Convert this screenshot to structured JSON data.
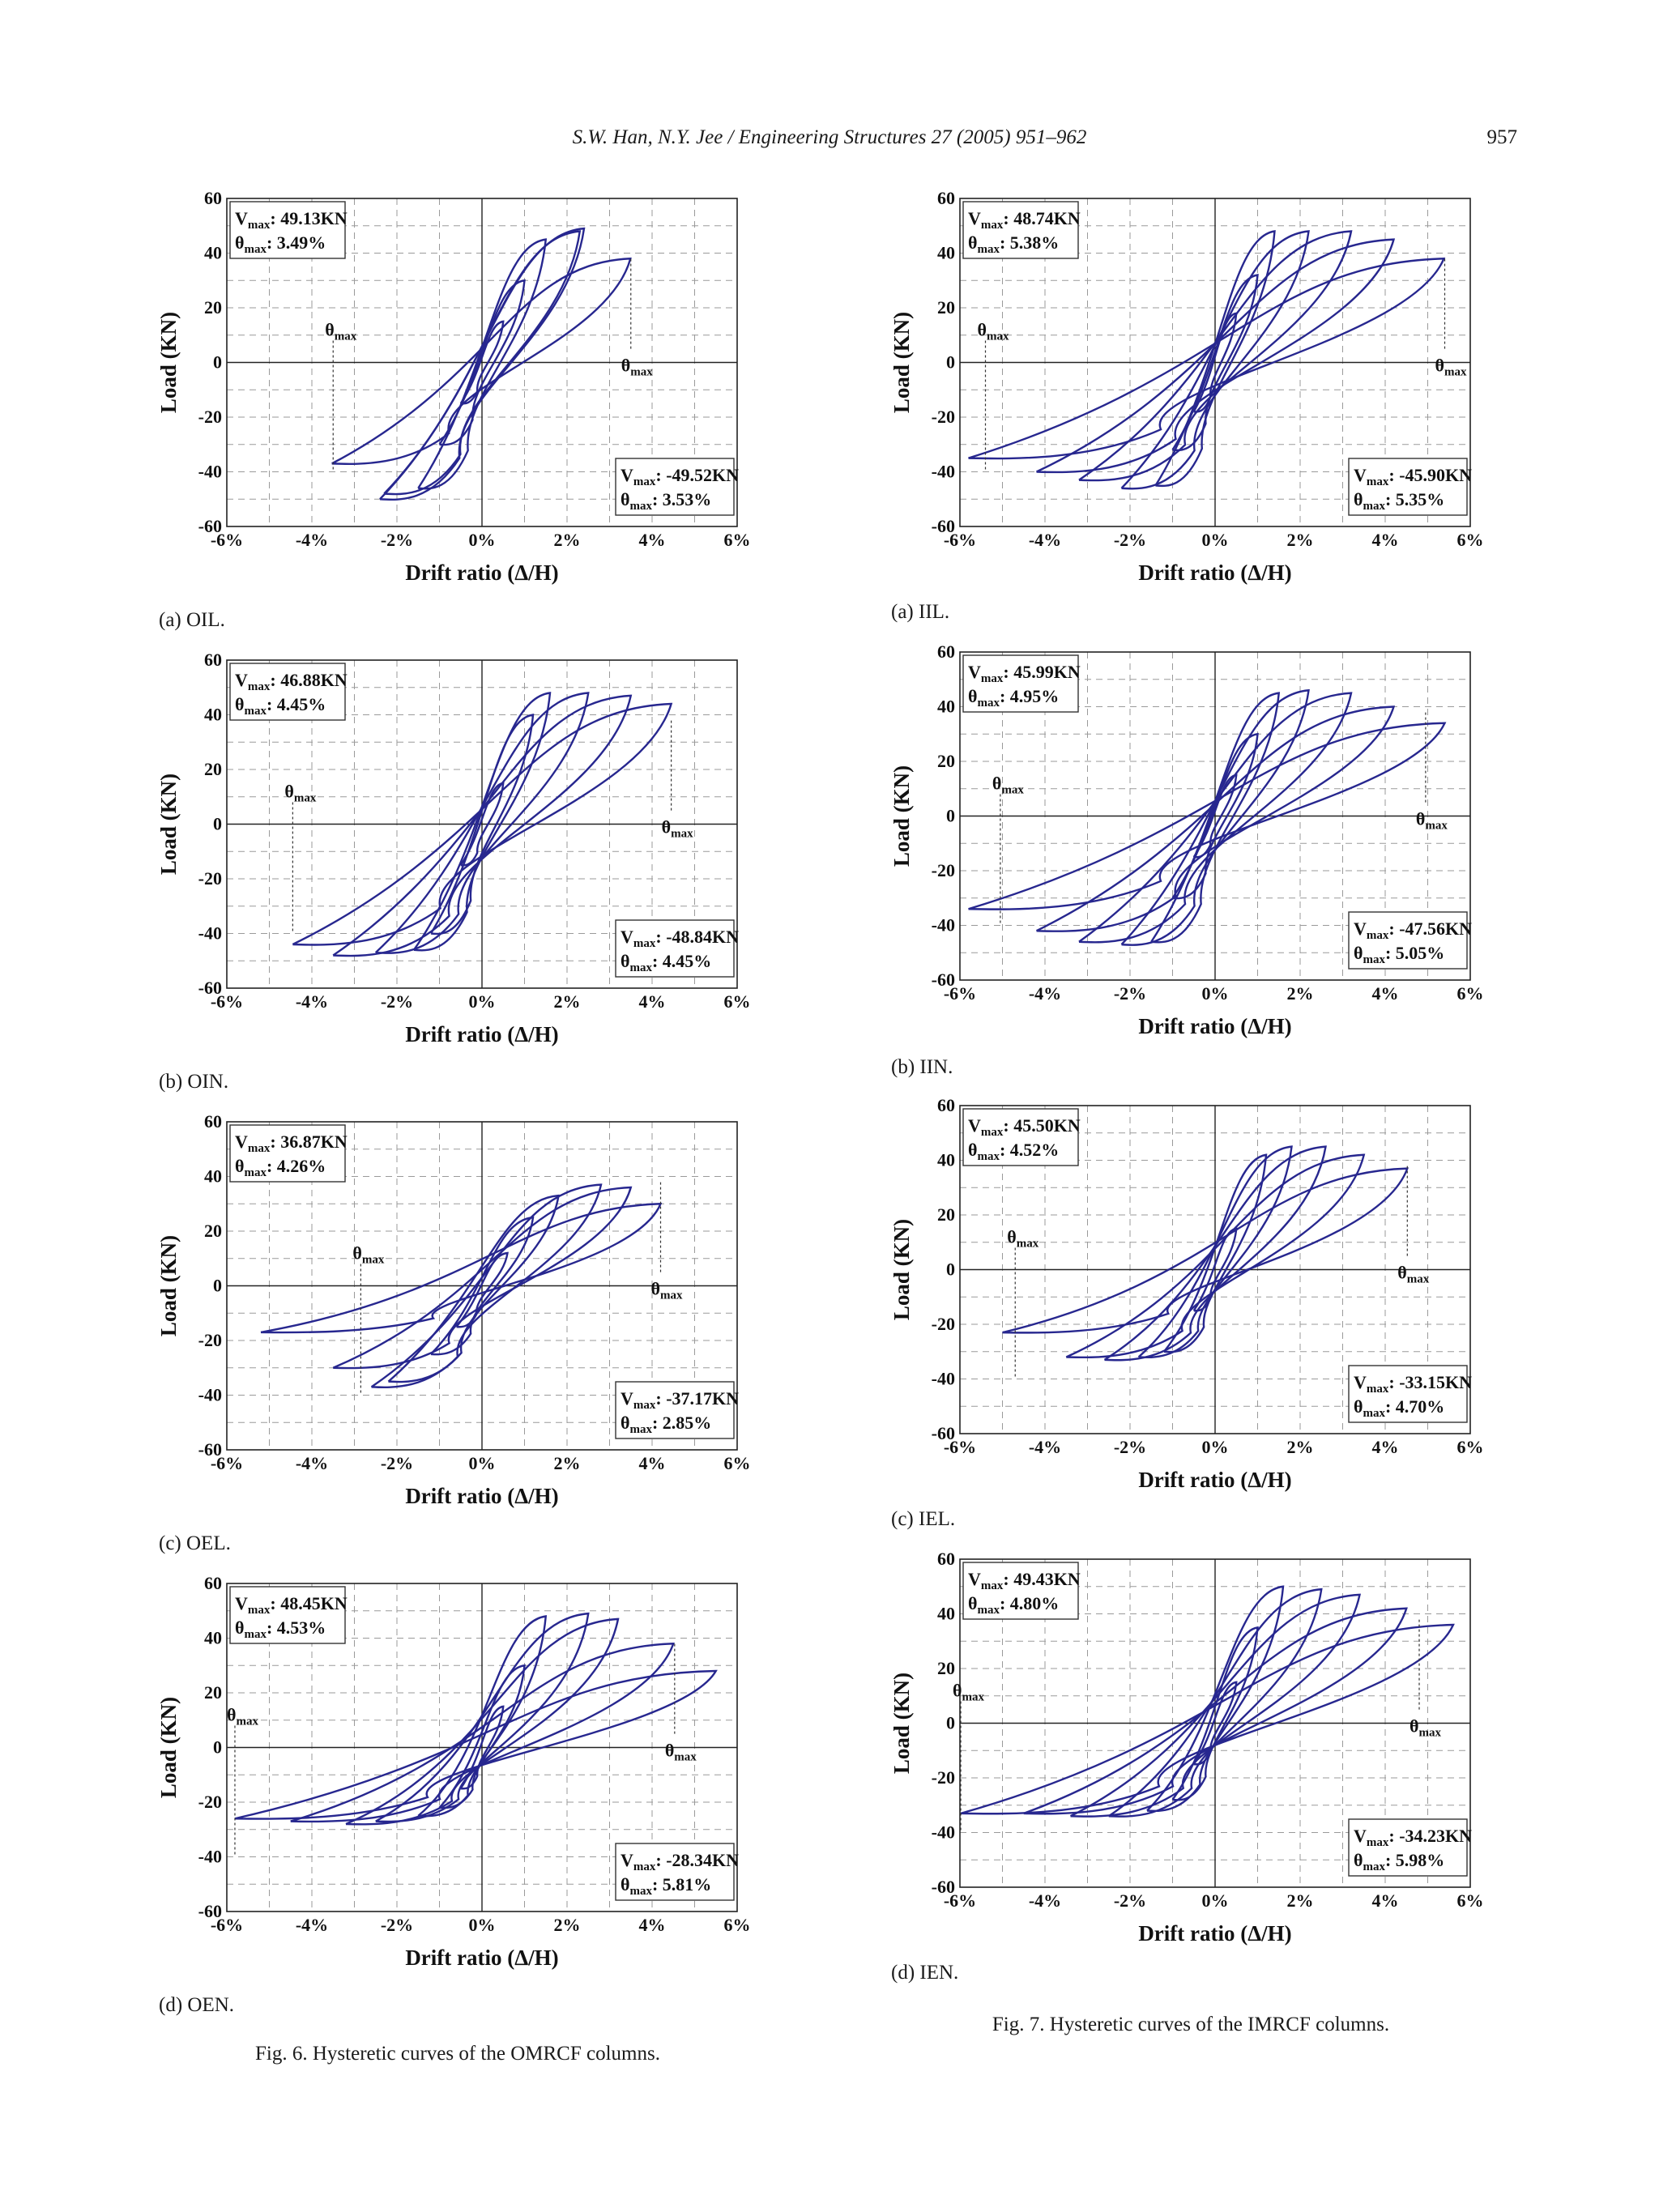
{
  "header": {
    "running_head": "S.W. Han, N.Y. Jee / Engineering Structures 27 (2005) 951–962",
    "page_number": "957"
  },
  "figures": [
    {
      "caption": "Fig. 6. Hysteretic curves of the OMRCF columns."
    },
    {
      "caption": "Fig. 7. Hysteretic curves of the IMRCF columns."
    }
  ],
  "colors": {
    "curve": "#27278f",
    "axis": "#222222",
    "grid": "#9a9a9a"
  },
  "chart_data": [
    {
      "type": "line",
      "panel": "(a) OIL.",
      "xlabel": "Drift ratio (Δ/H)",
      "ylabel": "Load (KN)",
      "xlim": [
        -6,
        6
      ],
      "ylim": [
        -60,
        60
      ],
      "x_ticks": [
        "-6%",
        "-4%",
        "-2%",
        "0%",
        "2%",
        "4%",
        "6%"
      ],
      "y_ticks": [
        "60",
        "40",
        "20",
        "0",
        "-20",
        "-40",
        "-60"
      ],
      "pos_peak": {
        "vmax": "49.13KN",
        "theta": "3.49%"
      },
      "neg_peak": {
        "vmax": "-49.52KN",
        "theta": "3.53%"
      },
      "theta_marks": [
        -3.5,
        3.5
      ],
      "theta_label": "max",
      "series": [
        {
          "amp": 0.5,
          "pos": [
            0.5,
            15
          ],
          "neg": [
            -0.5,
            -15
          ]
        },
        {
          "amp": 1.0,
          "pos": [
            1.0,
            30
          ],
          "neg": [
            -1.0,
            -30
          ]
        },
        {
          "amp": 1.5,
          "pos": [
            1.5,
            45
          ],
          "neg": [
            -1.5,
            -46
          ]
        },
        {
          "amp": 2.3,
          "pos": [
            2.3,
            48
          ],
          "neg": [
            -2.3,
            -48
          ]
        },
        {
          "amp": 2.4,
          "pos": [
            2.4,
            49
          ],
          "neg": [
            -2.4,
            -50
          ]
        },
        {
          "amp": 3.49,
          "pos": [
            3.49,
            38
          ],
          "neg": [
            -3.53,
            -37
          ]
        }
      ]
    },
    {
      "type": "line",
      "panel": "(a) IIL.",
      "xlabel": "Drift ratio (Δ/H)",
      "ylabel": "Load (KN)",
      "xlim": [
        -6,
        6
      ],
      "ylim": [
        -60,
        60
      ],
      "x_ticks": [
        "-6%",
        "-4%",
        "-2%",
        "0%",
        "2%",
        "4%",
        "6%"
      ],
      "y_ticks": [
        "60",
        "40",
        "20",
        "0",
        "-20",
        "-40",
        "-60"
      ],
      "pos_peak": {
        "vmax": "48.74KN",
        "theta": "5.38%"
      },
      "neg_peak": {
        "vmax": "-45.90KN",
        "theta": "5.35%"
      },
      "theta_marks": [
        -5.4,
        5.4
      ],
      "theta_label": "max",
      "series": [
        {
          "amp": 0.5,
          "pos": [
            0.5,
            18
          ],
          "neg": [
            -0.5,
            -18
          ]
        },
        {
          "amp": 1.0,
          "pos": [
            1.0,
            32
          ],
          "neg": [
            -1.0,
            -32
          ]
        },
        {
          "amp": 1.4,
          "pos": [
            1.4,
            48
          ],
          "neg": [
            -1.4,
            -45
          ]
        },
        {
          "amp": 2.2,
          "pos": [
            2.2,
            48
          ],
          "neg": [
            -2.2,
            -46
          ]
        },
        {
          "amp": 3.2,
          "pos": [
            3.2,
            48
          ],
          "neg": [
            -3.2,
            -43
          ]
        },
        {
          "amp": 4.2,
          "pos": [
            4.2,
            45
          ],
          "neg": [
            -4.2,
            -40
          ]
        },
        {
          "amp": 5.38,
          "pos": [
            5.38,
            38
          ],
          "neg": [
            -5.8,
            -35
          ]
        }
      ]
    },
    {
      "type": "line",
      "panel": "(b) OIN.",
      "xlabel": "Drift ratio (Δ/H)",
      "ylabel": "Load (KN)",
      "xlim": [
        -6,
        6
      ],
      "ylim": [
        -60,
        60
      ],
      "x_ticks": [
        "-6%",
        "-4%",
        "-2%",
        "0%",
        "2%",
        "4%",
        "6%"
      ],
      "y_ticks": [
        "60",
        "40",
        "20",
        "0",
        "-20",
        "-40",
        "-60"
      ],
      "pos_peak": {
        "vmax": "46.88KN",
        "theta": "4.45%"
      },
      "neg_peak": {
        "vmax": "-48.84KN",
        "theta": "4.45%"
      },
      "theta_marks": [
        -4.45,
        4.45
      ],
      "theta_label": "max",
      "series": [
        {
          "amp": 0.5,
          "pos": [
            0.5,
            15
          ],
          "neg": [
            -0.5,
            -15
          ]
        },
        {
          "amp": 1.2,
          "pos": [
            1.2,
            40
          ],
          "neg": [
            -1.2,
            -40
          ]
        },
        {
          "amp": 1.6,
          "pos": [
            1.6,
            48
          ],
          "neg": [
            -1.6,
            -46
          ]
        },
        {
          "amp": 2.5,
          "pos": [
            2.5,
            48
          ],
          "neg": [
            -2.5,
            -47
          ]
        },
        {
          "amp": 3.5,
          "pos": [
            3.5,
            47
          ],
          "neg": [
            -3.5,
            -48
          ]
        },
        {
          "amp": 4.45,
          "pos": [
            4.45,
            44
          ],
          "neg": [
            -4.45,
            -44
          ]
        }
      ]
    },
    {
      "type": "line",
      "panel": "(b) IIN.",
      "xlabel": "Drift ratio (Δ/H)",
      "ylabel": "Load (KN)",
      "xlim": [
        -6,
        6
      ],
      "ylim": [
        -60,
        60
      ],
      "x_ticks": [
        "-6%",
        "-4%",
        "-2%",
        "0%",
        "2%",
        "4%",
        "6%"
      ],
      "y_ticks": [
        "60",
        "40",
        "20",
        "0",
        "-20",
        "-40",
        "-60"
      ],
      "pos_peak": {
        "vmax": "45.99KN",
        "theta": "4.95%"
      },
      "neg_peak": {
        "vmax": "-47.56KN",
        "theta": "5.05%"
      },
      "theta_marks": [
        -5.05,
        4.95
      ],
      "theta_label": "max",
      "series": [
        {
          "amp": 0.5,
          "pos": [
            0.5,
            15
          ],
          "neg": [
            -0.5,
            -15
          ]
        },
        {
          "amp": 1.0,
          "pos": [
            1.0,
            30
          ],
          "neg": [
            -1.0,
            -30
          ]
        },
        {
          "amp": 1.5,
          "pos": [
            1.5,
            45
          ],
          "neg": [
            -1.5,
            -46
          ]
        },
        {
          "amp": 2.2,
          "pos": [
            2.2,
            46
          ],
          "neg": [
            -2.2,
            -47
          ]
        },
        {
          "amp": 3.2,
          "pos": [
            3.2,
            45
          ],
          "neg": [
            -3.2,
            -46
          ]
        },
        {
          "amp": 4.2,
          "pos": [
            4.2,
            40
          ],
          "neg": [
            -4.2,
            -42
          ]
        },
        {
          "amp": 5.4,
          "pos": [
            5.4,
            34
          ],
          "neg": [
            -5.8,
            -34
          ]
        }
      ]
    },
    {
      "type": "line",
      "panel": "(c) OEL.",
      "xlabel": "Drift ratio (Δ/H)",
      "ylabel": "Load (KN)",
      "xlim": [
        -6,
        6
      ],
      "ylim": [
        -60,
        60
      ],
      "x_ticks": [
        "-6%",
        "-4%",
        "-2%",
        "0%",
        "2%",
        "4%",
        "6%"
      ],
      "y_ticks": [
        "60",
        "40",
        "20",
        "0",
        "-20",
        "-40",
        "-60"
      ],
      "pos_peak": {
        "vmax": "36.87KN",
        "theta": "4.26%"
      },
      "neg_peak": {
        "vmax": "-37.17KN",
        "theta": "2.85%"
      },
      "theta_marks": [
        -2.85,
        4.2
      ],
      "theta_label": "max",
      "series": [
        {
          "amp": 0.6,
          "pos": [
            0.6,
            12
          ],
          "neg": [
            -0.6,
            -15
          ]
        },
        {
          "amp": 1.2,
          "pos": [
            1.2,
            25
          ],
          "neg": [
            -1.2,
            -25
          ]
        },
        {
          "amp": 1.8,
          "pos": [
            1.8,
            33
          ],
          "neg": [
            -2.2,
            -35
          ]
        },
        {
          "amp": 2.8,
          "pos": [
            2.8,
            37
          ],
          "neg": [
            -2.6,
            -37
          ]
        },
        {
          "amp": 3.5,
          "pos": [
            3.5,
            36
          ],
          "neg": [
            -3.5,
            -30
          ]
        },
        {
          "amp": 4.2,
          "pos": [
            4.2,
            30
          ],
          "neg": [
            -5.2,
            -17
          ]
        }
      ]
    },
    {
      "type": "line",
      "panel": "(c) IEL.",
      "xlabel": "Drift ratio (Δ/H)",
      "ylabel": "Load (KN)",
      "xlim": [
        -6,
        6
      ],
      "ylim": [
        -60,
        60
      ],
      "x_ticks": [
        "-6%",
        "-4%",
        "-2%",
        "0%",
        "2%",
        "4%",
        "6%"
      ],
      "y_ticks": [
        "60",
        "40",
        "20",
        "0",
        "-20",
        "-40",
        "-60"
      ],
      "pos_peak": {
        "vmax": "45.50KN",
        "theta": "4.52%"
      },
      "neg_peak": {
        "vmax": "-33.15KN",
        "theta": "4.70%"
      },
      "theta_marks": [
        -4.7,
        4.52
      ],
      "theta_label": "max",
      "series": [
        {
          "amp": 0.5,
          "pos": [
            0.5,
            15
          ],
          "neg": [
            -0.5,
            -15
          ]
        },
        {
          "amp": 1.2,
          "pos": [
            1.2,
            42
          ],
          "neg": [
            -1.2,
            -30
          ]
        },
        {
          "amp": 1.8,
          "pos": [
            1.8,
            45
          ],
          "neg": [
            -1.8,
            -32
          ]
        },
        {
          "amp": 2.6,
          "pos": [
            2.6,
            45
          ],
          "neg": [
            -2.6,
            -33
          ]
        },
        {
          "amp": 3.5,
          "pos": [
            3.5,
            42
          ],
          "neg": [
            -3.5,
            -32
          ]
        },
        {
          "amp": 4.52,
          "pos": [
            4.52,
            37
          ],
          "neg": [
            -5.0,
            -23
          ]
        }
      ]
    },
    {
      "type": "line",
      "panel": "(d) OEN.",
      "xlabel": "Drift ratio (Δ/H)",
      "ylabel": "Load (KN)",
      "xlim": [
        -6,
        6
      ],
      "ylim": [
        -60,
        60
      ],
      "x_ticks": [
        "-6%",
        "-4%",
        "-2%",
        "0%",
        "2%",
        "4%",
        "6%"
      ],
      "y_ticks": [
        "60",
        "40",
        "20",
        "0",
        "-20",
        "-40",
        "-60"
      ],
      "pos_peak": {
        "vmax": "48.45KN",
        "theta": "4.53%"
      },
      "neg_peak": {
        "vmax": "-28.34KN",
        "theta": "5.81%"
      },
      "theta_marks": [
        -5.81,
        4.53
      ],
      "theta_label": "max",
      "series": [
        {
          "amp": 0.5,
          "pos": [
            0.5,
            15
          ],
          "neg": [
            -0.5,
            -15
          ]
        },
        {
          "amp": 1.0,
          "pos": [
            1.0,
            30
          ],
          "neg": [
            -1.0,
            -22
          ]
        },
        {
          "amp": 1.5,
          "pos": [
            1.5,
            48
          ],
          "neg": [
            -1.5,
            -25
          ]
        },
        {
          "amp": 2.5,
          "pos": [
            2.5,
            49
          ],
          "neg": [
            -2.5,
            -27
          ]
        },
        {
          "amp": 3.2,
          "pos": [
            3.2,
            47
          ],
          "neg": [
            -3.2,
            -28
          ]
        },
        {
          "amp": 4.5,
          "pos": [
            4.5,
            38
          ],
          "neg": [
            -4.5,
            -27
          ]
        },
        {
          "amp": 5.5,
          "pos": [
            5.5,
            28
          ],
          "neg": [
            -5.81,
            -26
          ]
        }
      ]
    },
    {
      "type": "line",
      "panel": "(d) IEN.",
      "xlabel": "Drift ratio (Δ/H)",
      "ylabel": "Load (KN)",
      "xlim": [
        -6,
        6
      ],
      "ylim": [
        -60,
        60
      ],
      "x_ticks": [
        "-6%",
        "-4%",
        "-2%",
        "0%",
        "2%",
        "4%",
        "6%"
      ],
      "y_ticks": [
        "60",
        "40",
        "20",
        "0",
        "-20",
        "-40",
        "-60"
      ],
      "pos_peak": {
        "vmax": "49.43KN",
        "theta": "4.80%"
      },
      "neg_peak": {
        "vmax": "-34.23KN",
        "theta": "5.98%"
      },
      "theta_marks": [
        -5.98,
        4.8
      ],
      "theta_label": "max",
      "series": [
        {
          "amp": 0.5,
          "pos": [
            0.5,
            15
          ],
          "neg": [
            -0.5,
            -15
          ]
        },
        {
          "amp": 1.0,
          "pos": [
            1.0,
            35
          ],
          "neg": [
            -1.0,
            -28
          ]
        },
        {
          "amp": 1.6,
          "pos": [
            1.6,
            50
          ],
          "neg": [
            -1.6,
            -32
          ]
        },
        {
          "amp": 2.5,
          "pos": [
            2.5,
            49
          ],
          "neg": [
            -2.5,
            -34
          ]
        },
        {
          "amp": 3.4,
          "pos": [
            3.4,
            47
          ],
          "neg": [
            -3.4,
            -34
          ]
        },
        {
          "amp": 4.5,
          "pos": [
            4.5,
            42
          ],
          "neg": [
            -4.5,
            -33
          ]
        },
        {
          "amp": 5.6,
          "pos": [
            5.6,
            36
          ],
          "neg": [
            -5.98,
            -33
          ]
        }
      ]
    }
  ]
}
